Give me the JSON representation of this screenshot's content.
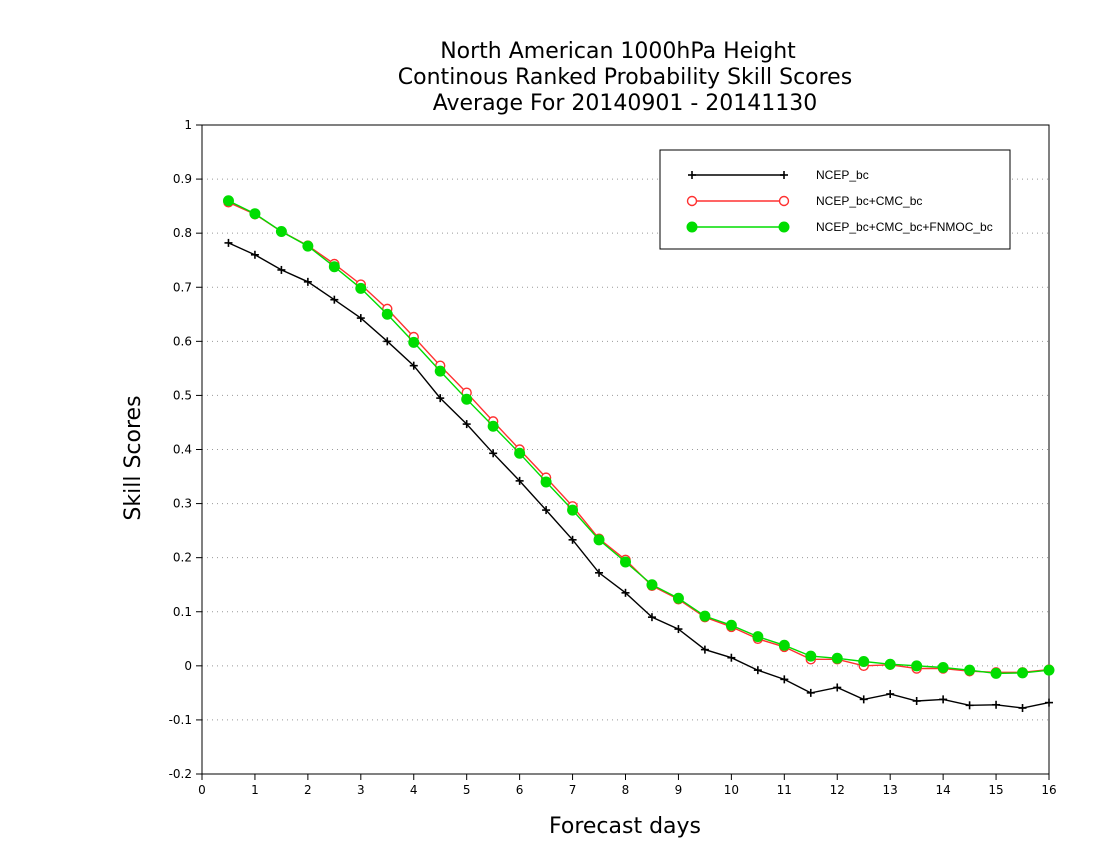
{
  "chart_data": {
    "type": "line",
    "title_lines": [
      "North American 1000hPa Height",
      "Continous Ranked Probability Skill Scores",
      "Average For 20140901 - 20141130"
    ],
    "xlabel": "Forecast days",
    "ylabel": "Skill Scores",
    "xlim": [
      0,
      16
    ],
    "ylim": [
      -0.2,
      1
    ],
    "x_ticks": [
      "0",
      "1",
      "2",
      "3",
      "4",
      "5",
      "6",
      "7",
      "8",
      "9",
      "10",
      "11",
      "12",
      "13",
      "14",
      "15",
      "16"
    ],
    "y_ticks": [
      "-0.2",
      "-0.1",
      "0",
      "0.1",
      "0.2",
      "0.3",
      "0.4",
      "0.5",
      "0.6",
      "0.7",
      "0.8",
      "0.9",
      "1"
    ],
    "grid": "horizontal dotted",
    "legend_position": "top-right",
    "x": [
      0.5,
      1,
      1.5,
      2,
      2.5,
      3,
      3.5,
      4,
      4.5,
      5,
      5.5,
      6,
      6.5,
      7,
      7.5,
      8,
      8.5,
      9,
      9.5,
      10,
      10.5,
      11,
      11.5,
      12,
      12.5,
      13,
      13.5,
      14,
      14.5,
      15,
      15.5,
      16
    ],
    "series": [
      {
        "name": "NCEP_bc",
        "color": "#000000",
        "marker": "plus",
        "values": [
          0.782,
          0.76,
          0.732,
          0.71,
          0.677,
          0.643,
          0.6,
          0.555,
          0.495,
          0.447,
          0.393,
          0.342,
          0.288,
          0.233,
          0.172,
          0.135,
          0.09,
          0.068,
          0.03,
          0.015,
          -0.008,
          -0.025,
          -0.05,
          -0.04,
          -0.062,
          -0.052,
          -0.065,
          -0.062,
          -0.073,
          -0.072,
          -0.078,
          -0.068
        ]
      },
      {
        "name": "NCEP_bc+CMC_bc",
        "color": "#ff3030",
        "marker": "open-circle",
        "values": [
          0.857,
          0.835,
          0.803,
          0.777,
          0.743,
          0.705,
          0.66,
          0.608,
          0.555,
          0.505,
          0.452,
          0.4,
          0.348,
          0.295,
          0.235,
          0.196,
          0.148,
          0.123,
          0.09,
          0.072,
          0.05,
          0.035,
          0.012,
          0.012,
          0.0,
          0.002,
          -0.005,
          -0.005,
          -0.01,
          -0.012,
          -0.012,
          -0.007
        ]
      },
      {
        "name": "NCEP_bc+CMC_bc+FNMOC_bc",
        "color": "#00dd00",
        "marker": "filled-circle",
        "values": [
          0.86,
          0.836,
          0.803,
          0.776,
          0.738,
          0.698,
          0.65,
          0.598,
          0.545,
          0.493,
          0.443,
          0.393,
          0.34,
          0.288,
          0.233,
          0.192,
          0.15,
          0.125,
          0.092,
          0.075,
          0.054,
          0.038,
          0.018,
          0.014,
          0.008,
          0.003,
          0.0,
          -0.003,
          -0.008,
          -0.014,
          -0.013,
          -0.008
        ]
      }
    ]
  }
}
